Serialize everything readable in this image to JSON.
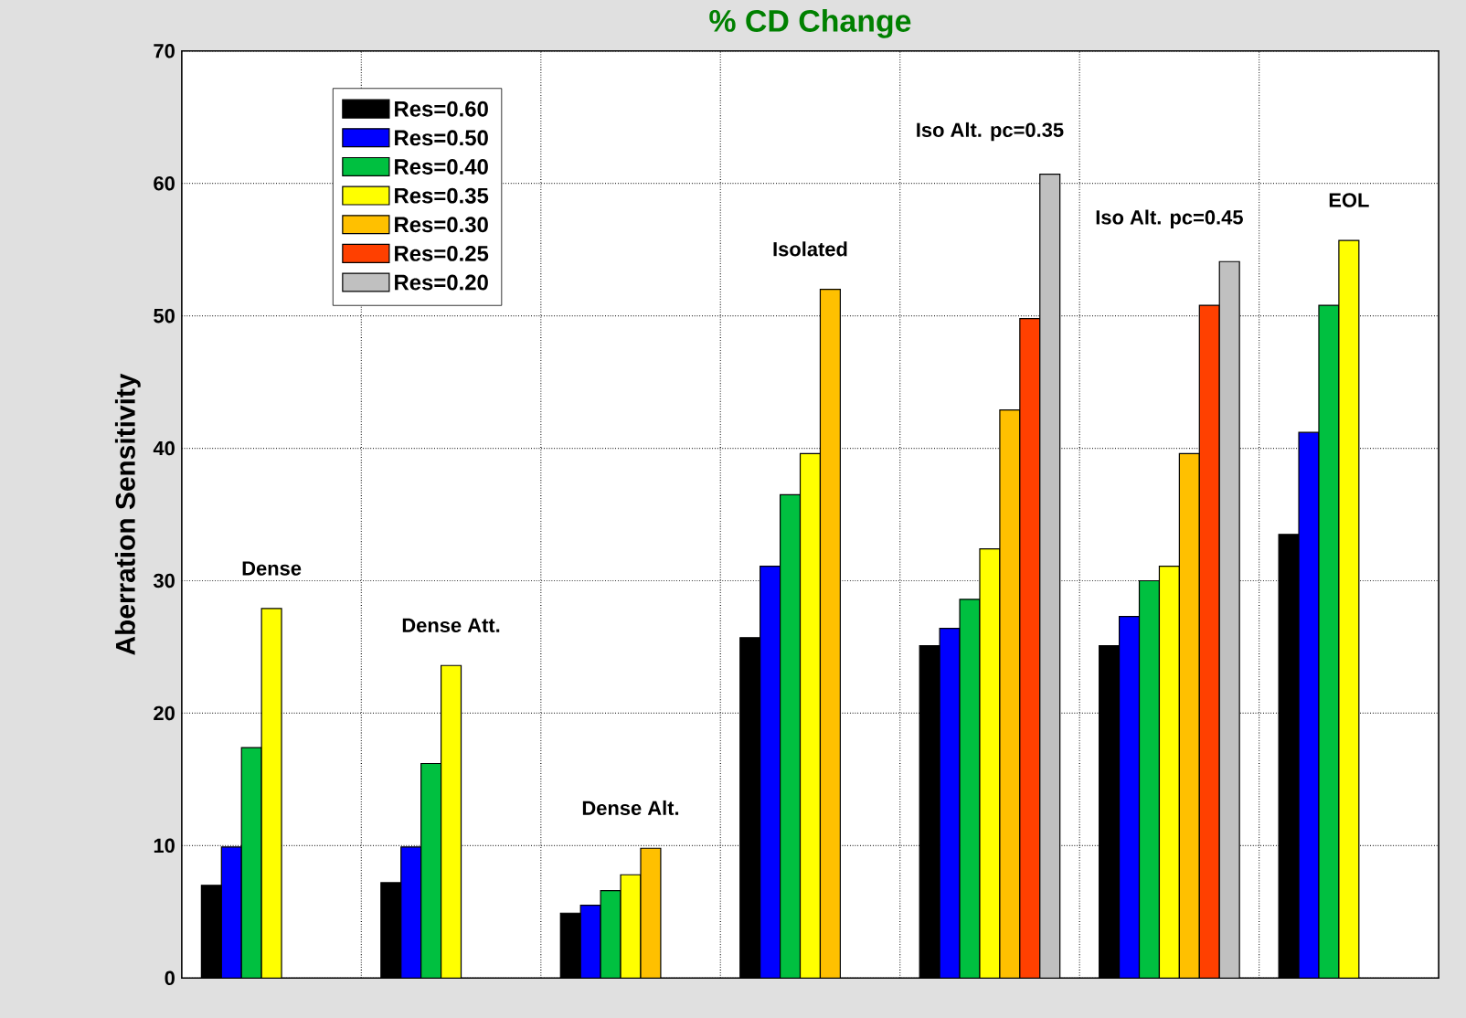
{
  "chart_data": {
    "type": "bar",
    "title": "% CD Change",
    "categories": [
      null,
      null,
      null,
      null,
      null,
      null,
      null
    ],
    "series": [
      {
        "name": "Res=0.60",
        "color": "#000000",
        "values": [
          7.0,
          7.2,
          4.9,
          25.7,
          25.1,
          25.1,
          33.5
        ]
      },
      {
        "name": "Res=0.50",
        "color": "#0000ff",
        "values": [
          9.9,
          9.9,
          5.5,
          31.1,
          26.4,
          27.3,
          41.2
        ]
      },
      {
        "name": "Res=0.40",
        "color": "#00c040",
        "values": [
          17.4,
          16.2,
          6.6,
          36.5,
          28.6,
          30.0,
          50.8
        ]
      },
      {
        "name": "Res=0.35",
        "color": "#ffff00",
        "values": [
          27.9,
          23.6,
          7.8,
          39.6,
          32.4,
          31.1,
          55.7
        ]
      },
      {
        "name": "Res=0.30",
        "color": "#ffc000",
        "values": [
          null,
          null,
          9.8,
          52.0,
          42.9,
          39.6,
          null
        ]
      },
      {
        "name": "Res=0.25",
        "color": "#ff4000",
        "values": [
          null,
          null,
          null,
          null,
          49.8,
          50.8,
          null
        ]
      },
      {
        "name": "Res=0.20",
        "color": "#c0c0c0",
        "values": [
          null,
          null,
          null,
          null,
          60.7,
          54.1,
          null
        ]
      }
    ],
    "ylabel": "Aberration Sensitivity",
    "ylim": [
      0,
      70
    ],
    "yticks": [
      0,
      10,
      20,
      30,
      40,
      50,
      60,
      70
    ],
    "grid": true,
    "legend": "top left",
    "annotations": [
      "Dense",
      "Dense Att.",
      "Dense Alt.",
      "Isolated",
      "Iso Alt. pc=0.35",
      "Iso Alt. pc=0.45",
      "EOL"
    ]
  }
}
